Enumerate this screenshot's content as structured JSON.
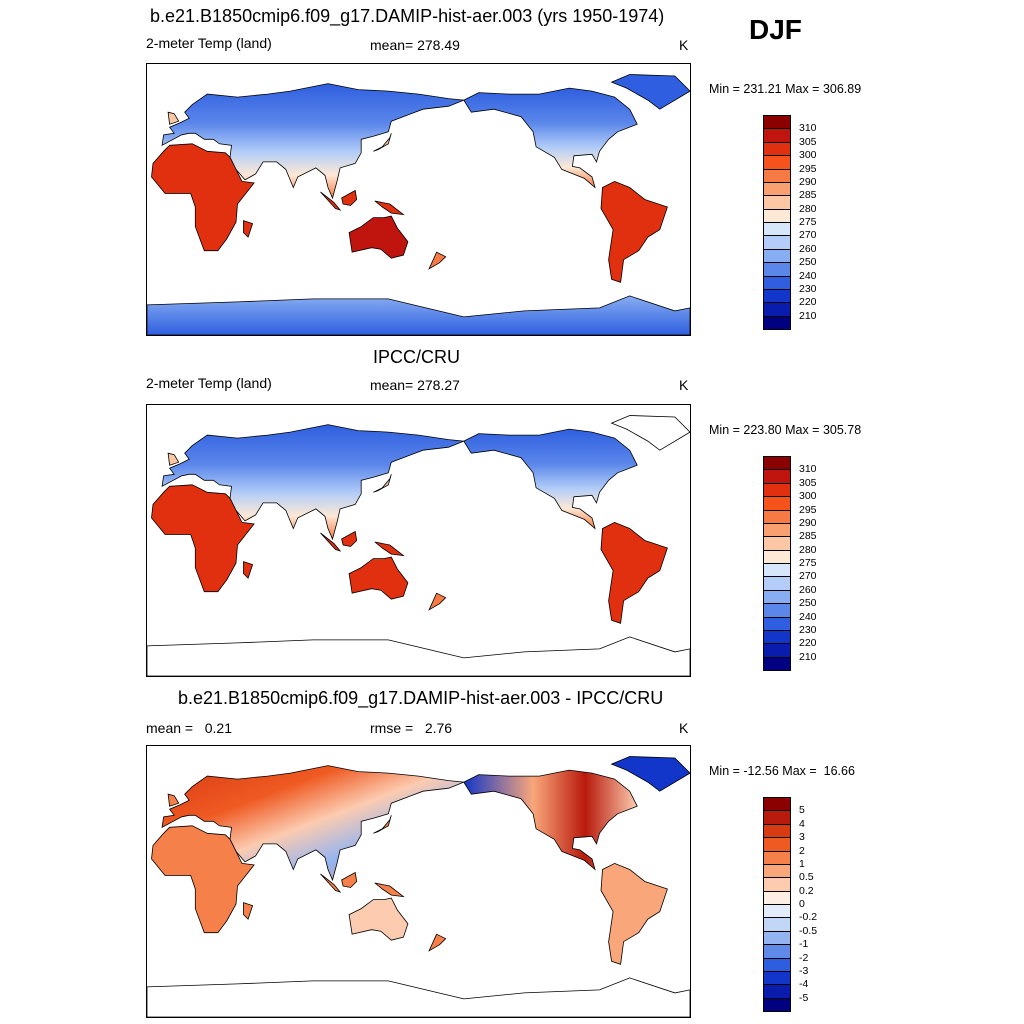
{
  "season": "DJF",
  "panels": [
    {
      "title": "b.e21.B1850cmip6.f09_g17.DAMIP-hist-aer.003 (yrs 1950-1974)",
      "left_label": "2-meter Temp (land)",
      "center_label": "mean= 278.49",
      "right_label": "K",
      "minmax": "Min = 231.21 Max = 306.89",
      "scheme": "model",
      "colorbar": {
        "labels": [
          "310",
          "305",
          "300",
          "295",
          "290",
          "285",
          "280",
          "275",
          "270",
          "260",
          "250",
          "240",
          "230",
          "220",
          "210"
        ],
        "colors": [
          "#8b0000",
          "#c0150f",
          "#e0300f",
          "#f5521c",
          "#f77a45",
          "#f9a070",
          "#fbc7a4",
          "#fde9d6",
          "#d7e6fb",
          "#b3cdf8",
          "#87adf2",
          "#5b87ea",
          "#2f5fe0",
          "#1236c9",
          "#0a1cae",
          "#000080"
        ]
      }
    },
    {
      "title": "IPCC/CRU",
      "left_label": "2-meter Temp (land)",
      "center_label": "mean= 278.27",
      "right_label": "K",
      "minmax": "Min = 223.80 Max = 305.78",
      "scheme": "obs",
      "colorbar": {
        "labels": [
          "310",
          "305",
          "300",
          "295",
          "290",
          "285",
          "280",
          "275",
          "270",
          "260",
          "250",
          "240",
          "230",
          "220",
          "210"
        ],
        "colors": [
          "#8b0000",
          "#c0150f",
          "#e0300f",
          "#f5521c",
          "#f77a45",
          "#f9a070",
          "#fbc7a4",
          "#fde9d6",
          "#d7e6fb",
          "#b3cdf8",
          "#87adf2",
          "#5b87ea",
          "#2f5fe0",
          "#1236c9",
          "#0a1cae",
          "#000080"
        ]
      }
    },
    {
      "title": "b.e21.B1850cmip6.f09_g17.DAMIP-hist-aer.003 - IPCC/CRU",
      "left_label": "mean =   0.21",
      "center_label": "rmse =   2.76",
      "right_label": "K",
      "minmax": "Min = -12.56 Max =  16.66",
      "scheme": "diff",
      "colorbar": {
        "labels": [
          "5",
          "4",
          "3",
          "2",
          "1",
          "0.5",
          "0.2",
          "0",
          "-0.2",
          "-0.5",
          "-1",
          "-2",
          "-3",
          "-4",
          "-5"
        ],
        "colors": [
          "#8b0000",
          "#b81a0c",
          "#d93a12",
          "#ef5a22",
          "#f5804a",
          "#f9a67a",
          "#fccbb0",
          "#fdeee4",
          "#e3ecfb",
          "#c2d6f8",
          "#93b4f1",
          "#5f8ae9",
          "#2e5ee0",
          "#1236c9",
          "#0a1cae",
          "#000080"
        ]
      }
    }
  ]
}
